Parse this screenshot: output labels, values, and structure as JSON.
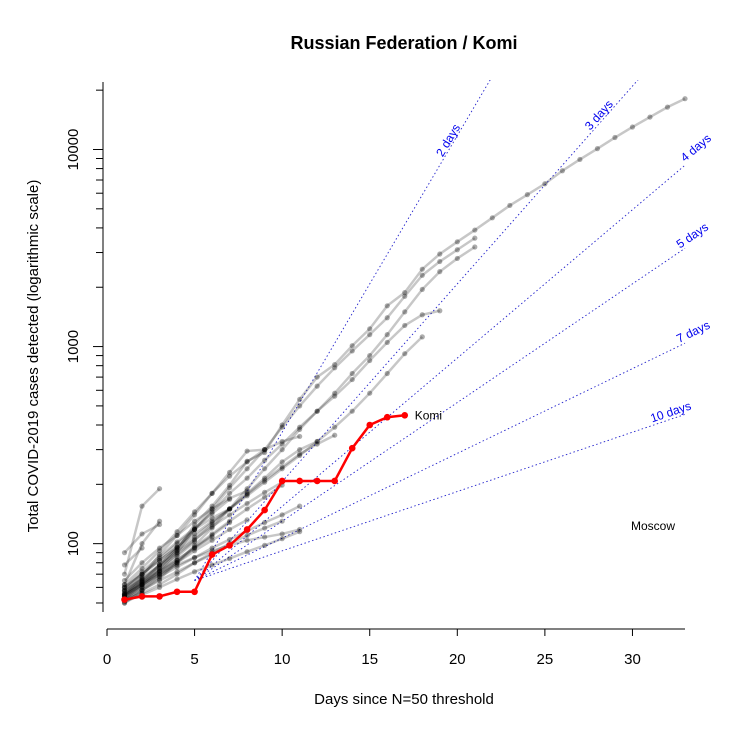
{
  "chart_data": {
    "type": "line",
    "title": "Russian Federation / Komi",
    "xlabel": "Days since N=50 threshold",
    "ylabel": "Total COVID-2019 cases detected (logarithmic scale)",
    "xlim": [
      0,
      33
    ],
    "ylim": [
      45,
      22000
    ],
    "y_scale": "log",
    "x_ticks": [
      0,
      5,
      10,
      15,
      20,
      25,
      30
    ],
    "y_ticks": [
      100,
      1000,
      10000
    ],
    "grid": false,
    "doubling_reference_lines": [
      {
        "label": "2 days",
        "days": 2
      },
      {
        "label": "3 days",
        "days": 3
      },
      {
        "label": "4 days",
        "days": 4
      },
      {
        "label": "5 days",
        "days": 5
      },
      {
        "label": "7 days",
        "days": 7
      },
      {
        "label": "10 days",
        "days": 10
      }
    ],
    "highlight": {
      "name": "Komi",
      "x": [
        1,
        2,
        3,
        4,
        5,
        6,
        7,
        8,
        9,
        10,
        11,
        12,
        13,
        14,
        15,
        16,
        17
      ],
      "y": [
        52,
        54,
        54,
        57,
        57,
        88,
        98,
        118,
        148,
        208,
        208,
        208,
        208,
        305,
        400,
        438,
        448
      ]
    },
    "series": [
      {
        "name": "Moscow",
        "x": [
          1,
          2,
          3,
          4,
          5,
          6,
          7,
          8,
          9,
          10,
          11,
          12,
          13,
          14,
          15,
          16,
          17,
          18,
          19,
          20,
          21,
          22,
          23,
          24,
          25,
          26,
          27,
          28,
          29,
          30,
          31,
          32,
          33
        ],
        "y": [
          55,
          62,
          75,
          93,
          125,
          155,
          198,
          262,
          290,
          400,
          540,
          700,
          810,
          1010,
          1230,
          1610,
          1880,
          2470,
          2950,
          3400,
          3900,
          4500,
          5200,
          5900,
          6700,
          7800,
          8900,
          10100,
          11500,
          13000,
          14600,
          16400,
          18100
        ]
      },
      {
        "x": [
          1,
          2,
          3,
          4,
          5,
          6,
          7,
          8,
          9,
          10,
          11,
          12,
          13,
          14,
          15,
          16,
          17,
          18,
          19,
          20,
          21
        ],
        "y": [
          53,
          62,
          73,
          90,
          118,
          150,
          192,
          240,
          300,
          390,
          500,
          630,
          780,
          950,
          1150,
          1400,
          1800,
          2300,
          2700,
          3100,
          3550
        ]
      },
      {
        "x": [
          1,
          2,
          3,
          4,
          5,
          6,
          7,
          8,
          9,
          10,
          11,
          12,
          13,
          14,
          15,
          16,
          17,
          18,
          19,
          20,
          21
        ],
        "y": [
          52,
          58,
          66,
          80,
          98,
          120,
          150,
          190,
          240,
          300,
          380,
          470,
          580,
          730,
          900,
          1150,
          1500,
          1950,
          2400,
          2800,
          3200
        ]
      },
      {
        "x": [
          1,
          2,
          3,
          4,
          5,
          6,
          7,
          8,
          9,
          10,
          11,
          12,
          13,
          14,
          15,
          16,
          17,
          18,
          19
        ],
        "y": [
          55,
          65,
          78,
          95,
          118,
          145,
          180,
          215,
          265,
          320,
          390,
          470,
          560,
          680,
          850,
          1050,
          1280,
          1450,
          1520
        ]
      },
      {
        "x": [
          1,
          2,
          3,
          4,
          5,
          6,
          7,
          8,
          9,
          10,
          11,
          12,
          13,
          14,
          15,
          16,
          17,
          18
        ],
        "y": [
          60,
          70,
          82,
          96,
          112,
          130,
          150,
          175,
          205,
          240,
          280,
          330,
          390,
          470,
          580,
          730,
          920,
          1120
        ]
      },
      {
        "x": [
          1,
          2,
          3,
          4,
          5,
          6,
          7,
          8,
          9,
          10,
          11,
          12,
          13
        ],
        "y": [
          58,
          67,
          78,
          92,
          108,
          128,
          150,
          178,
          210,
          245,
          285,
          320,
          355
        ]
      },
      {
        "x": [
          1,
          2,
          3,
          4,
          5,
          6,
          7,
          8,
          9,
          10,
          11,
          12
        ],
        "y": [
          56,
          64,
          75,
          88,
          104,
          125,
          150,
          180,
          215,
          260,
          300,
          330
        ]
      },
      {
        "x": [
          1,
          2,
          3,
          4,
          5,
          6,
          7,
          8,
          9,
          10,
          11
        ],
        "y": [
          62,
          75,
          92,
          115,
          145,
          180,
          220,
          260,
          300,
          330,
          350
        ]
      },
      {
        "x": [
          1,
          2,
          3,
          4,
          5,
          6,
          7,
          8,
          9,
          10,
          11
        ],
        "y": [
          54,
          60,
          68,
          76,
          85,
          95,
          105,
          116,
          128,
          140,
          155
        ]
      },
      {
        "x": [
          1,
          2,
          3,
          4,
          5,
          6,
          7,
          8,
          9,
          10,
          11
        ],
        "y": [
          51,
          55,
          60,
          66,
          72,
          78,
          84,
          91,
          98,
          106,
          115
        ]
      },
      {
        "x": [
          1,
          2,
          3,
          4,
          5,
          6,
          7,
          8,
          9,
          10,
          11
        ],
        "y": [
          55,
          62,
          70,
          78,
          85,
          92,
          98,
          104,
          108,
          112,
          118
        ]
      },
      {
        "x": [
          1,
          2,
          3,
          4,
          5,
          6,
          7,
          8,
          9,
          10
        ],
        "y": [
          57,
          66,
          77,
          90,
          105,
          122,
          140,
          160,
          182,
          205
        ]
      },
      {
        "x": [
          1,
          2,
          3,
          4,
          5,
          6,
          7,
          8,
          9,
          10
        ],
        "y": [
          53,
          60,
          70,
          82,
          96,
          112,
          130,
          150,
          172,
          198
        ]
      },
      {
        "x": [
          1,
          2,
          3,
          4,
          5,
          6,
          7,
          8,
          9,
          10
        ],
        "y": [
          52,
          56,
          62,
          70,
          80,
          90,
          100,
          110,
          120,
          130
        ]
      },
      {
        "x": [
          1,
          2,
          3,
          4,
          5,
          6,
          7,
          8,
          9
        ],
        "y": [
          55,
          68,
          88,
          110,
          140,
          180,
          230,
          295,
          300
        ]
      },
      {
        "x": [
          1,
          2,
          3,
          4,
          5,
          6,
          7,
          8
        ],
        "y": [
          65,
          80,
          95,
          110,
          130,
          150,
          170,
          185
        ]
      },
      {
        "x": [
          1,
          2,
          3,
          4,
          5,
          6,
          7,
          8
        ],
        "y": [
          54,
          62,
          70,
          80,
          92,
          104,
          118,
          132
        ]
      },
      {
        "x": [
          1,
          2,
          3,
          4,
          5,
          6,
          7
        ],
        "y": [
          50,
          58,
          68,
          80,
          95,
          110,
          128
        ]
      },
      {
        "x": [
          1,
          2,
          3,
          4,
          5,
          6,
          7
        ],
        "y": [
          58,
          70,
          84,
          100,
          118,
          135,
          150
        ]
      },
      {
        "x": [
          1,
          2,
          3,
          4,
          5,
          6,
          7
        ],
        "y": [
          60,
          72,
          86,
          102,
          120,
          142,
          168
        ]
      },
      {
        "x": [
          1,
          2,
          3,
          4,
          5,
          6
        ],
        "y": [
          52,
          58,
          65,
          72,
          80,
          88
        ]
      },
      {
        "x": [
          1,
          2,
          3,
          4,
          5,
          6
        ],
        "y": [
          56,
          64,
          73,
          83,
          95,
          108
        ]
      },
      {
        "x": [
          1,
          2,
          3,
          4,
          5
        ],
        "y": [
          54,
          64,
          78,
          95,
          118
        ]
      },
      {
        "x": [
          1,
          2,
          3,
          4,
          5
        ],
        "y": [
          52,
          61,
          72,
          86,
          102
        ]
      },
      {
        "x": [
          1,
          2,
          3,
          4
        ],
        "y": [
          55,
          63,
          72,
          82
        ]
      },
      {
        "x": [
          1,
          2,
          3,
          4
        ],
        "y": [
          60,
          70,
          82,
          96
        ]
      },
      {
        "x": [
          1,
          2,
          3
        ],
        "y": [
          62,
          100,
          130
        ]
      },
      {
        "x": [
          1,
          2,
          3
        ],
        "y": [
          70,
          155,
          190
        ]
      },
      {
        "x": [
          1,
          2,
          3
        ],
        "y": [
          90,
          112,
          125
        ]
      },
      {
        "x": [
          1,
          2
        ],
        "y": [
          78,
          95
        ]
      },
      {
        "x": [
          1,
          2
        ],
        "y": [
          50,
          56
        ]
      },
      {
        "x": [
          1,
          2
        ],
        "y": [
          58,
          66
        ]
      }
    ]
  }
}
